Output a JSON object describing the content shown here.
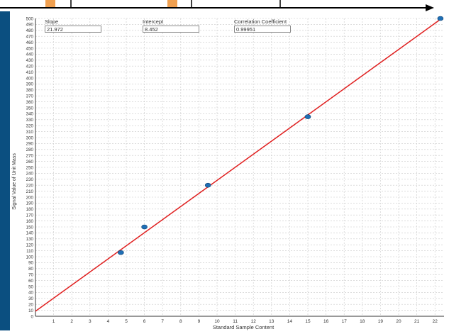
{
  "chart_data": {
    "type": "scatter",
    "xlabel": "Standard Sample Content",
    "ylabel": "Signal Value of Unit Mass",
    "xlim": [
      0,
      22.5
    ],
    "ylim": [
      0,
      500
    ],
    "x_ticks": [
      1,
      2,
      3,
      4,
      5,
      6,
      7,
      8,
      9,
      10,
      11,
      12,
      13,
      14,
      15,
      16,
      17,
      18,
      19,
      20,
      21,
      22
    ],
    "y_ticks": [
      0,
      10,
      20,
      30,
      40,
      50,
      60,
      70,
      80,
      90,
      100,
      110,
      120,
      130,
      140,
      150,
      160,
      170,
      180,
      190,
      200,
      210,
      220,
      230,
      240,
      250,
      260,
      270,
      280,
      290,
      300,
      310,
      320,
      330,
      340,
      350,
      360,
      370,
      380,
      390,
      400,
      410,
      420,
      430,
      440,
      450,
      460,
      470,
      480,
      490,
      500
    ],
    "grid": true,
    "points": [
      {
        "x": 4.7,
        "y": 107
      },
      {
        "x": 6.0,
        "y": 150
      },
      {
        "x": 9.5,
        "y": 220
      },
      {
        "x": 15.0,
        "y": 335
      },
      {
        "x": 22.3,
        "y": 500
      }
    ],
    "fit_line": {
      "slope": 21.972,
      "intercept": 8.452
    },
    "colors": {
      "points": "#1f6fb5",
      "fit_line": "#e02020",
      "grid": "#c8c8c8"
    }
  },
  "stats": {
    "slope_label": "Slope",
    "slope_value": "21.972",
    "intercept_label": "Intercept",
    "intercept_value": "8.452",
    "correlation_label": "Correlation Coefficient",
    "correlation_value": "0.99951"
  }
}
